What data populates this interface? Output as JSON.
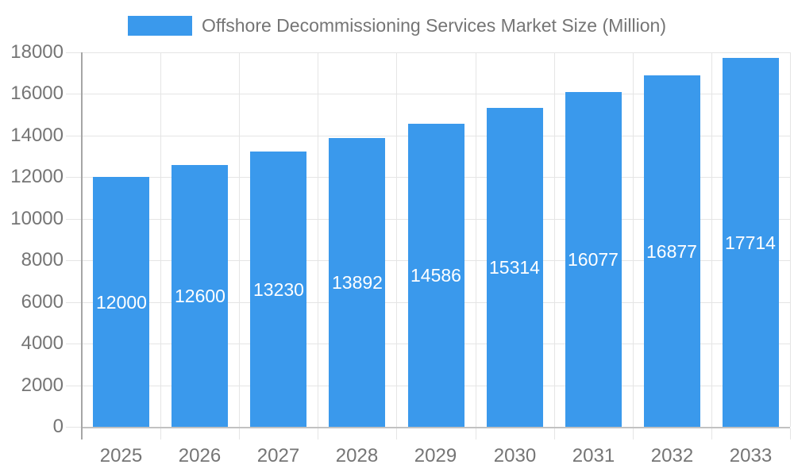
{
  "legend": {
    "label": "Offshore Decommissioning Services Market Size (Million)"
  },
  "chart_data": {
    "type": "bar",
    "title": "Offshore Decommissioning Services Market Size (Million)",
    "categories": [
      "2025",
      "2026",
      "2027",
      "2028",
      "2029",
      "2030",
      "2031",
      "2032",
      "2033"
    ],
    "series": [
      {
        "name": "Offshore Decommissioning Services Market Size (Million)",
        "values": [
          12000,
          12600,
          13230,
          13892,
          14586,
          15314,
          16077,
          16877,
          17714
        ]
      }
    ],
    "xlabel": "",
    "ylabel": "",
    "ylim": [
      0,
      18000
    ],
    "ytick_interval": 2000,
    "ytick_labels": [
      "0",
      "2000",
      "4000",
      "6000",
      "8000",
      "10000",
      "12000",
      "14000",
      "16000",
      "18000"
    ],
    "grid": "horizontal and vertical gridlines on",
    "legend_position": "top-center",
    "bar_label_position": "inside-center"
  },
  "colors": {
    "bar": "#3A99EC",
    "bar_label": "#FFFFFF",
    "axis_text": "#757575",
    "gridline": "#E5E5E5",
    "y_axis_line": "#A6A6A6",
    "x_axis_line": "#C2C2C2",
    "legend_text": "#757575",
    "background": "#FFFFFF"
  }
}
